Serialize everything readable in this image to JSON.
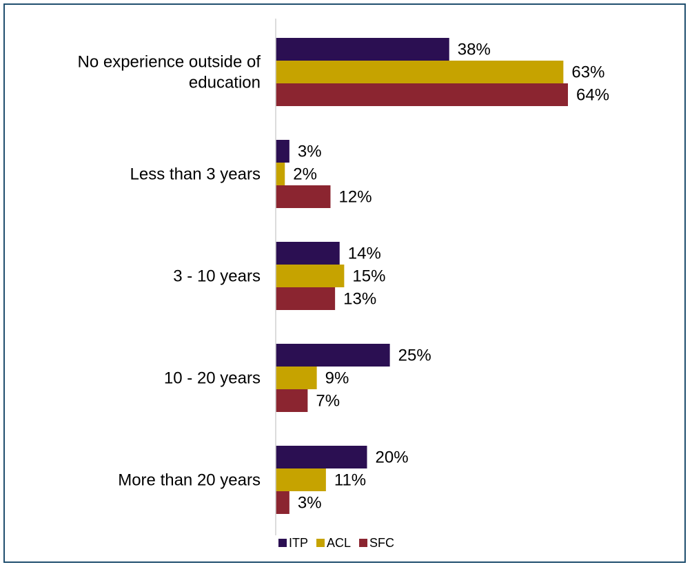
{
  "chart_data": {
    "type": "bar",
    "orientation": "horizontal",
    "categories": [
      [
        "No experience outside of",
        "education"
      ],
      [
        "Less than 3 years"
      ],
      [
        "3 - 10 years"
      ],
      [
        "10 - 20 years"
      ],
      [
        "More than 20 years"
      ]
    ],
    "series": [
      {
        "name": "ITP",
        "color": "#2b0f52",
        "values": [
          38,
          3,
          14,
          25,
          20
        ],
        "labels": [
          "38%",
          "3%",
          "14%",
          "25%",
          "20%"
        ]
      },
      {
        "name": "ACL",
        "color": "#c6a300",
        "values": [
          63,
          2,
          15,
          9,
          11
        ],
        "labels": [
          "63%",
          "2%",
          "15%",
          "9%",
          "11%"
        ]
      },
      {
        "name": "SFC",
        "color": "#8b2530",
        "values": [
          64,
          12,
          13,
          7,
          3
        ],
        "labels": [
          "64%",
          "12%",
          "13%",
          "7%",
          "3%"
        ]
      }
    ],
    "xlim": [
      0,
      100
    ],
    "value_suffix": "%",
    "grid": false,
    "legend_position": "bottom",
    "axis_line_color": "#d0d0d0",
    "frame_color": "#1f4e6e"
  }
}
